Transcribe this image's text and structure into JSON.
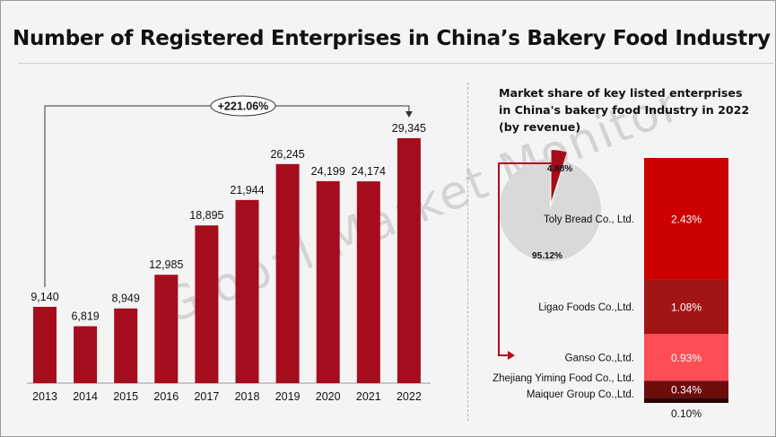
{
  "title": "Number of Registered Enterprises in China’s Bakery Food Industry",
  "watermark": "Global Market Monitor",
  "growth_callout": "+221.06%",
  "chart_data": [
    {
      "type": "bar",
      "title": "Number of Registered Enterprises in China’s Bakery Food Industry",
      "categories": [
        "2013",
        "2014",
        "2015",
        "2016",
        "2017",
        "2018",
        "2019",
        "2020",
        "2021",
        "2022"
      ],
      "values": [
        9140,
        6819,
        8949,
        12985,
        18895,
        21944,
        26245,
        24199,
        24174,
        29345
      ],
      "value_labels": [
        "9,140",
        "6,819",
        "8,949",
        "12,985",
        "18,895",
        "21,944",
        "26,245",
        "24,199",
        "24,174",
        "29,345"
      ],
      "ylim": [
        0,
        33000
      ],
      "grid": false,
      "bar_color": "#a50d1c",
      "annotation": "+221.06%"
    },
    {
      "type": "pie",
      "title_lines": [
        "Market share of key listed enterprises",
        "in China's bakery food Industry in 2022",
        "(by revenue)"
      ],
      "slices": [
        {
          "label": "4.88%",
          "value": 4.88,
          "color": "#a50d1c"
        },
        {
          "label": "95.12%",
          "value": 95.12,
          "color": "#d9d9d9"
        }
      ]
    },
    {
      "type": "bar",
      "subtype": "stacked",
      "series": [
        {
          "name": "Toly Bread Co., Ltd.",
          "value": 2.43,
          "label": "2.43%",
          "color": "#cc0000"
        },
        {
          "name": "Ligao Foods Co.,Ltd.",
          "value": 1.08,
          "label": "1.08%",
          "color": "#a31515"
        },
        {
          "name": "Ganso Co.,Ltd.",
          "value": 0.93,
          "label": "0.93%",
          "color": "#ff4d55"
        },
        {
          "name": "Zhejiang Yiming Food Co., Ltd.",
          "value": 0.34,
          "label": "0.34%",
          "color": "#6e0c0c"
        },
        {
          "name": "Maiquer Group Co.,Ltd.",
          "value": 0.1,
          "label": "0.10%",
          "color": "#2a0404"
        }
      ]
    }
  ]
}
